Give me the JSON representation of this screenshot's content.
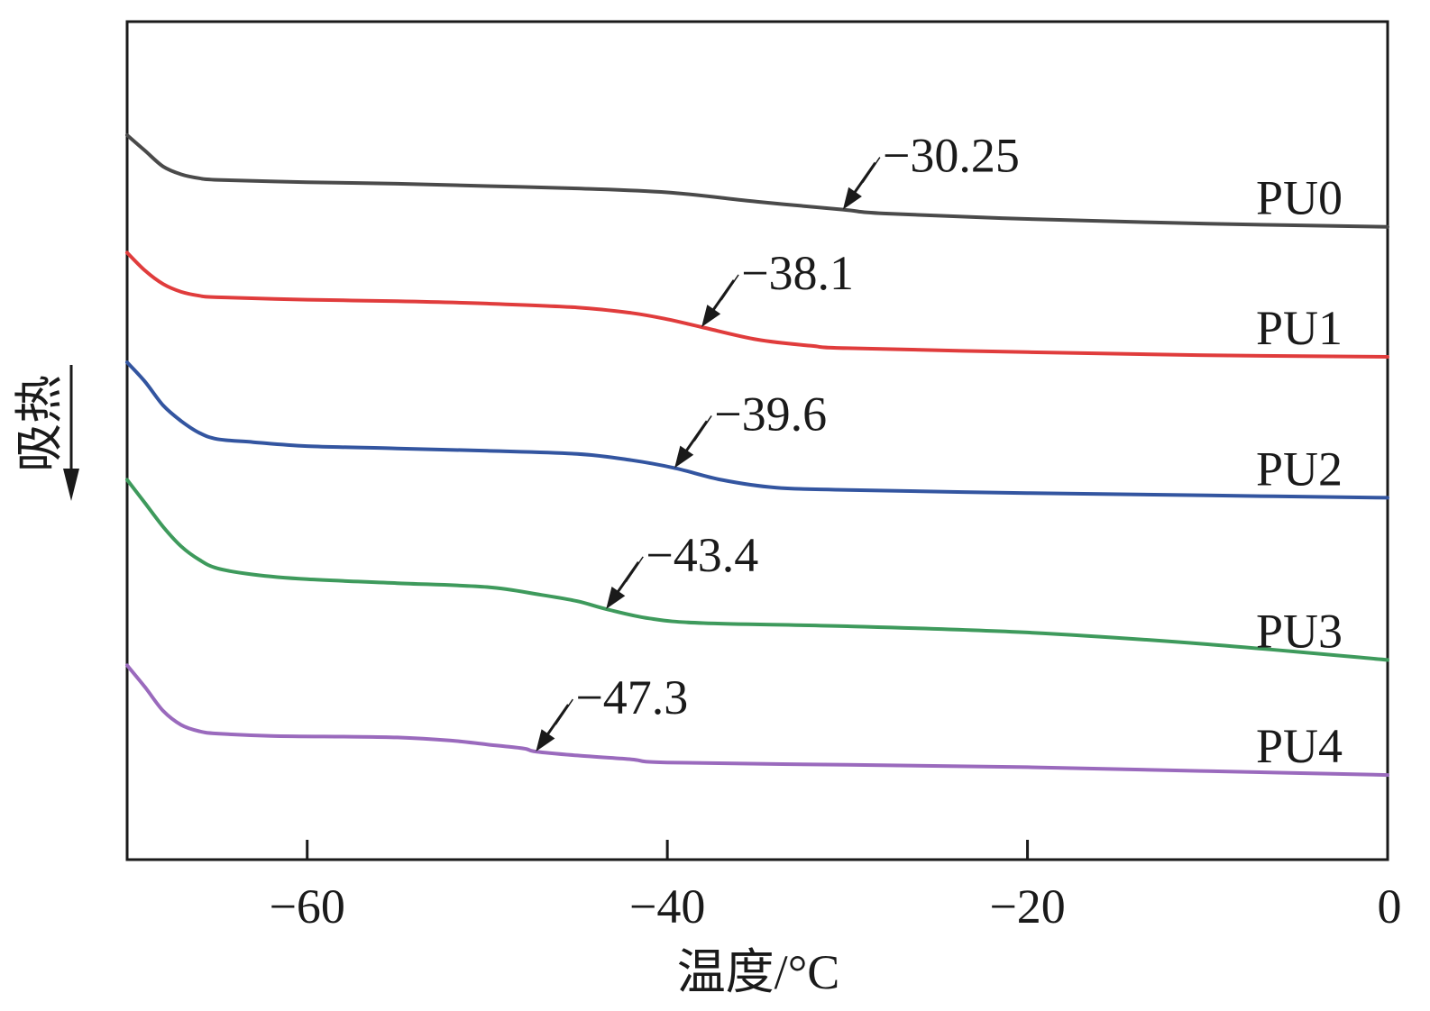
{
  "chart_data": {
    "type": "line",
    "title": "",
    "xlabel": "温度/°C",
    "ylabel": "吸热",
    "ylabel_arrow": "↓",
    "xlim": [
      -70,
      0
    ],
    "xticks": [
      -60,
      -40,
      -20,
      0
    ],
    "xtick_labels": [
      "−60",
      "−40",
      "−20",
      "0"
    ],
    "yticks_visible": false,
    "grid": false,
    "legend": "none (series labeled at right end of each curve)",
    "series": [
      {
        "name": "PU0",
        "color": "#4a4a4a",
        "tg": -30.25,
        "tg_label": "−30.25",
        "points": [
          [
            -70,
            1.95
          ],
          [
            -69,
            1.75
          ],
          [
            -68,
            1.55
          ],
          [
            -67,
            1.45
          ],
          [
            -66,
            1.4
          ],
          [
            -65,
            1.38
          ],
          [
            -60,
            1.35
          ],
          [
            -55,
            1.33
          ],
          [
            -50,
            1.3
          ],
          [
            -45,
            1.27
          ],
          [
            -40,
            1.22
          ],
          [
            -35,
            1.1
          ],
          [
            -30.25,
            1.0
          ],
          [
            -28,
            0.95
          ],
          [
            -20,
            0.88
          ],
          [
            -10,
            0.82
          ],
          [
            0,
            0.78
          ]
        ]
      },
      {
        "name": "PU1",
        "color": "#e03c3c",
        "tg": -38.1,
        "tg_label": "−38.1",
        "points": [
          [
            -70,
            0.45
          ],
          [
            -69,
            0.22
          ],
          [
            -68,
            0.05
          ],
          [
            -67,
            -0.05
          ],
          [
            -66,
            -0.1
          ],
          [
            -65,
            -0.12
          ],
          [
            -60,
            -0.15
          ],
          [
            -55,
            -0.17
          ],
          [
            -50,
            -0.2
          ],
          [
            -45,
            -0.25
          ],
          [
            -42,
            -0.32
          ],
          [
            -40,
            -0.4
          ],
          [
            -38.1,
            -0.5
          ],
          [
            -35,
            -0.66
          ],
          [
            -32,
            -0.74
          ],
          [
            -30,
            -0.77
          ],
          [
            -20,
            -0.82
          ],
          [
            -10,
            -0.86
          ],
          [
            0,
            -0.88
          ]
        ]
      },
      {
        "name": "PU2",
        "color": "#3355a0",
        "tg": -39.6,
        "tg_label": "−39.6",
        "points": [
          [
            -70,
            -0.95
          ],
          [
            -69,
            -1.2
          ],
          [
            -68,
            -1.5
          ],
          [
            -67,
            -1.7
          ],
          [
            -66,
            -1.85
          ],
          [
            -65,
            -1.93
          ],
          [
            -63,
            -1.97
          ],
          [
            -60,
            -2.02
          ],
          [
            -55,
            -2.05
          ],
          [
            -50,
            -2.08
          ],
          [
            -45,
            -2.12
          ],
          [
            -42,
            -2.2
          ],
          [
            -39.6,
            -2.3
          ],
          [
            -37,
            -2.45
          ],
          [
            -34,
            -2.55
          ],
          [
            -30,
            -2.58
          ],
          [
            -20,
            -2.62
          ],
          [
            -10,
            -2.65
          ],
          [
            0,
            -2.68
          ]
        ]
      },
      {
        "name": "PU3",
        "color": "#3e9a5c",
        "tg": -43.4,
        "tg_label": "−43.4",
        "points": [
          [
            -70,
            -2.45
          ],
          [
            -69,
            -2.75
          ],
          [
            -68,
            -3.05
          ],
          [
            -67,
            -3.3
          ],
          [
            -66,
            -3.47
          ],
          [
            -65,
            -3.58
          ],
          [
            -63,
            -3.66
          ],
          [
            -60,
            -3.72
          ],
          [
            -55,
            -3.77
          ],
          [
            -50,
            -3.82
          ],
          [
            -47,
            -3.92
          ],
          [
            -45,
            -4.0
          ],
          [
            -43.4,
            -4.1
          ],
          [
            -41,
            -4.22
          ],
          [
            -38,
            -4.28
          ],
          [
            -30,
            -4.32
          ],
          [
            -20,
            -4.4
          ],
          [
            -10,
            -4.55
          ],
          [
            0,
            -4.75
          ]
        ]
      },
      {
        "name": "PU4",
        "color": "#9a6abd",
        "tg": -47.3,
        "tg_label": "−47.3",
        "points": [
          [
            -70,
            -4.82
          ],
          [
            -69,
            -5.1
          ],
          [
            -68,
            -5.4
          ],
          [
            -67,
            -5.58
          ],
          [
            -66,
            -5.66
          ],
          [
            -65,
            -5.69
          ],
          [
            -62,
            -5.72
          ],
          [
            -58,
            -5.73
          ],
          [
            -55,
            -5.74
          ],
          [
            -52,
            -5.78
          ],
          [
            -50,
            -5.83
          ],
          [
            -48,
            -5.88
          ],
          [
            -47.3,
            -5.92
          ],
          [
            -45,
            -5.97
          ],
          [
            -42,
            -6.02
          ],
          [
            -40,
            -6.06
          ],
          [
            -30,
            -6.09
          ],
          [
            -20,
            -6.12
          ],
          [
            -10,
            -6.17
          ],
          [
            0,
            -6.22
          ]
        ]
      }
    ]
  }
}
